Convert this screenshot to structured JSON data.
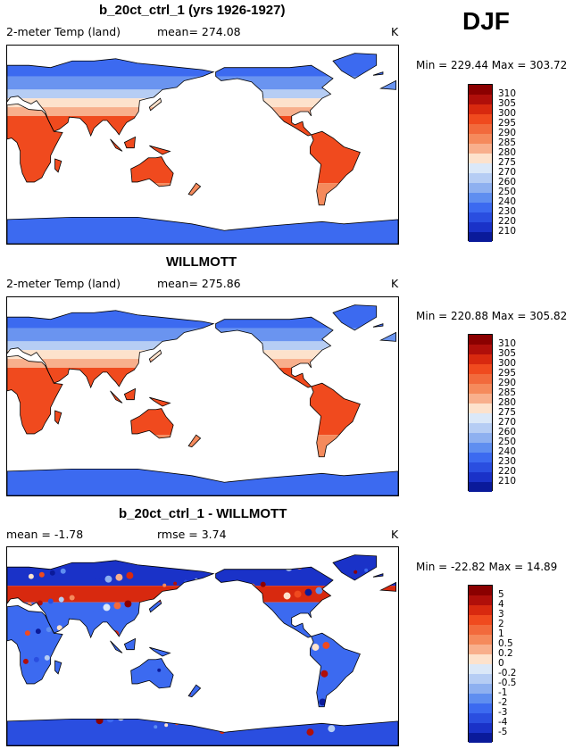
{
  "season": "DJF",
  "panels": [
    {
      "title": "b_20ct_ctrl_1 (yrs 1926-1927)",
      "variable": "2-meter Temp (land)",
      "stat1": "mean= 274.08",
      "stat2": "",
      "units": "K",
      "minmax": "Min = 229.44 Max = 303.72",
      "levels": [
        "310",
        "305",
        "300",
        "295",
        "290",
        "285",
        "280",
        "275",
        "270",
        "260",
        "250",
        "240",
        "230",
        "220",
        "210"
      ],
      "colors": [
        "#8b0000",
        "#b00f0a",
        "#d8290f",
        "#f04a1e",
        "#f26a3c",
        "#f58a5c",
        "#f8af8c",
        "#fde2cc",
        "#dbe8f8",
        "#b6cdf4",
        "#8eb0f0",
        "#5f8ef0",
        "#3c6af0",
        "#2a4ee0",
        "#1a32c8",
        "#0a1a9a"
      ],
      "map_style": "temperature"
    },
    {
      "title": "WILLMOTT",
      "variable": "2-meter Temp (land)",
      "stat1": "mean= 275.86",
      "stat2": "",
      "units": "K",
      "minmax": "Min = 220.88 Max = 305.82",
      "levels": [
        "310",
        "305",
        "300",
        "295",
        "290",
        "285",
        "280",
        "275",
        "270",
        "260",
        "250",
        "240",
        "230",
        "220",
        "210"
      ],
      "colors": [
        "#8b0000",
        "#b00f0a",
        "#d8290f",
        "#f04a1e",
        "#f26a3c",
        "#f58a5c",
        "#f8af8c",
        "#fde2cc",
        "#dbe8f8",
        "#b6cdf4",
        "#8eb0f0",
        "#5f8ef0",
        "#3c6af0",
        "#2a4ee0",
        "#1a32c8",
        "#0a1a9a"
      ],
      "map_style": "temperature"
    },
    {
      "title": "b_20ct_ctrl_1 - WILLMOTT",
      "variable": "mean =  -1.78",
      "stat1": "rmse =  3.74",
      "stat2": "",
      "units": "K",
      "minmax": "Min = -22.82 Max =  14.89",
      "levels": [
        "5",
        "4",
        "3",
        "2",
        "1",
        "0.5",
        "0.2",
        "0",
        "-0.2",
        "-0.5",
        "-1",
        "-2",
        "-3",
        "-4",
        "-5"
      ],
      "colors": [
        "#8b0000",
        "#b00f0a",
        "#d8290f",
        "#f04a1e",
        "#f26a3c",
        "#f58a5c",
        "#f8af8c",
        "#fde2cc",
        "#dbe8f8",
        "#b6cdf4",
        "#8eb0f0",
        "#5f8ef0",
        "#3c6af0",
        "#2a4ee0",
        "#1a32c8",
        "#0a1a9a"
      ],
      "map_style": "difference"
    }
  ]
}
